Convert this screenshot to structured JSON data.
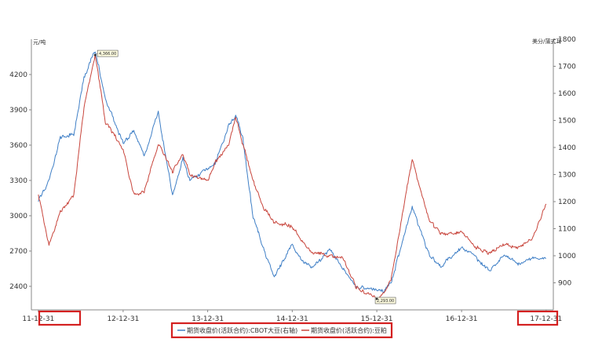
{
  "chart_data": {
    "type": "line",
    "title": "",
    "left_axis": {
      "unit_label": "元/吨",
      "ylim": [
        2200,
        4500
      ],
      "ticks": [
        2400,
        2700,
        3000,
        3300,
        3600,
        3900,
        4200
      ]
    },
    "right_axis": {
      "unit_label": "美分/蒲式耳",
      "ylim": [
        800,
        1800
      ],
      "ticks": [
        900,
        1000,
        1100,
        1200,
        1300,
        1400,
        1500,
        1600,
        1700,
        1800
      ]
    },
    "x_ticks": [
      "11-12-31",
      "12-12-31",
      "13-12-31",
      "14-12-31",
      "15-12-31",
      "16-12-31",
      "17-12-31"
    ],
    "highlighted_ticks": [
      "11-12-31",
      "17-12-31"
    ],
    "grid": false,
    "legend_position": "bottom",
    "series": [
      {
        "name": "期货收盘价(活跃合约):CBOT大豆(右轴)",
        "axis": "right",
        "color": "#3f7fc6",
        "points": [
          [
            "2011-12-31",
            1200
          ],
          [
            "2012-02-15",
            1270
          ],
          [
            "2012-04-01",
            1430
          ],
          [
            "2012-06-01",
            1450
          ],
          [
            "2012-07-15",
            1660
          ],
          [
            "2012-09-01",
            1760
          ],
          [
            "2012-10-15",
            1580
          ],
          [
            "2012-12-31",
            1420
          ],
          [
            "2013-02-15",
            1460
          ],
          [
            "2013-04-01",
            1370
          ],
          [
            "2013-06-01",
            1530
          ],
          [
            "2013-08-01",
            1220
          ],
          [
            "2013-09-15",
            1360
          ],
          [
            "2013-10-15",
            1280
          ],
          [
            "2013-12-31",
            1320
          ],
          [
            "2014-02-01",
            1340
          ],
          [
            "2014-04-01",
            1480
          ],
          [
            "2014-05-01",
            1520
          ],
          [
            "2014-06-01",
            1430
          ],
          [
            "2014-07-15",
            1140
          ],
          [
            "2014-09-01",
            1020
          ],
          [
            "2014-10-15",
            920
          ],
          [
            "2014-12-31",
            1040
          ],
          [
            "2015-02-15",
            980
          ],
          [
            "2015-04-01",
            960
          ],
          [
            "2015-06-15",
            1020
          ],
          [
            "2015-08-01",
            960
          ],
          [
            "2015-10-01",
            890
          ],
          [
            "2015-12-31",
            875
          ],
          [
            "2016-02-01",
            865
          ],
          [
            "2016-03-01",
            900
          ],
          [
            "2016-06-01",
            1180
          ],
          [
            "2016-08-15",
            1000
          ],
          [
            "2016-10-01",
            960
          ],
          [
            "2016-12-31",
            1030
          ],
          [
            "2017-03-01",
            1000
          ],
          [
            "2017-05-01",
            940
          ],
          [
            "2017-07-01",
            1010
          ],
          [
            "2017-09-01",
            970
          ],
          [
            "2017-11-01",
            990
          ],
          [
            "2017-12-31",
            990
          ]
        ]
      },
      {
        "name": "期货收盘价(活跃合约):豆粕",
        "axis": "left",
        "color": "#c8453c",
        "points": [
          [
            "2011-12-31",
            3180
          ],
          [
            "2012-02-15",
            2760
          ],
          [
            "2012-04-01",
            3020
          ],
          [
            "2012-06-01",
            3180
          ],
          [
            "2012-07-15",
            3920
          ],
          [
            "2012-09-01",
            4366
          ],
          [
            "2012-10-15",
            3800
          ],
          [
            "2012-12-31",
            3560
          ],
          [
            "2013-02-15",
            3180
          ],
          [
            "2013-04-01",
            3200
          ],
          [
            "2013-06-01",
            3620
          ],
          [
            "2013-08-01",
            3380
          ],
          [
            "2013-09-15",
            3520
          ],
          [
            "2013-10-15",
            3350
          ],
          [
            "2013-12-31",
            3300
          ],
          [
            "2014-02-01",
            3450
          ],
          [
            "2014-04-01",
            3600
          ],
          [
            "2014-05-01",
            3850
          ],
          [
            "2014-06-01",
            3600
          ],
          [
            "2014-07-15",
            3300
          ],
          [
            "2014-09-01",
            3050
          ],
          [
            "2014-10-15",
            2950
          ],
          [
            "2014-12-31",
            2900
          ],
          [
            "2015-02-15",
            2770
          ],
          [
            "2015-04-01",
            2680
          ],
          [
            "2015-06-15",
            2650
          ],
          [
            "2015-08-01",
            2650
          ],
          [
            "2015-10-01",
            2400
          ],
          [
            "2015-12-31",
            2293
          ],
          [
            "2016-02-01",
            2350
          ],
          [
            "2016-03-01",
            2450
          ],
          [
            "2016-06-01",
            3480
          ],
          [
            "2016-08-15",
            2950
          ],
          [
            "2016-10-01",
            2850
          ],
          [
            "2016-12-31",
            2860
          ],
          [
            "2017-03-01",
            2740
          ],
          [
            "2017-05-01",
            2680
          ],
          [
            "2017-07-01",
            2760
          ],
          [
            "2017-09-01",
            2720
          ],
          [
            "2017-11-01",
            2800
          ],
          [
            "2017-12-31",
            3100
          ]
        ]
      }
    ],
    "annotations": [
      {
        "label": "4,366.00",
        "x": "2012-09-01",
        "y": 4366,
        "axis": "left",
        "kind": "max"
      },
      {
        "label": "2,293.00",
        "x": "2015-12-31",
        "y": 2293,
        "axis": "left",
        "kind": "min"
      }
    ]
  }
}
